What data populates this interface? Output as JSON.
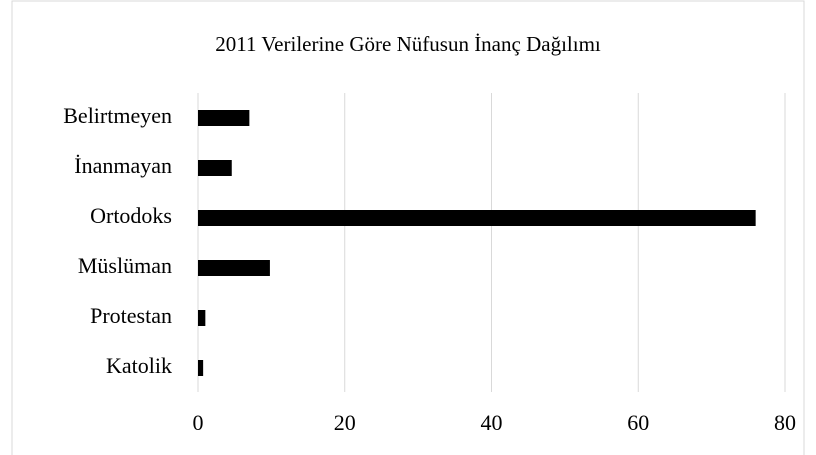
{
  "chart_data": {
    "type": "bar",
    "orientation": "horizontal",
    "title": "2011 Verilerine Göre Nüfusun İnanç Dağılımı",
    "categories": [
      "Belirtmeyen",
      "İnanmayan",
      "Ortodoks",
      "Müslüman",
      "Protestan",
      "Katolik"
    ],
    "values": [
      7,
      4.6,
      76,
      9.8,
      1,
      0.7
    ],
    "color": "#000000",
    "xlim": [
      0,
      80
    ],
    "xticks": [
      0,
      20,
      40,
      60,
      80
    ],
    "grid": true
  }
}
